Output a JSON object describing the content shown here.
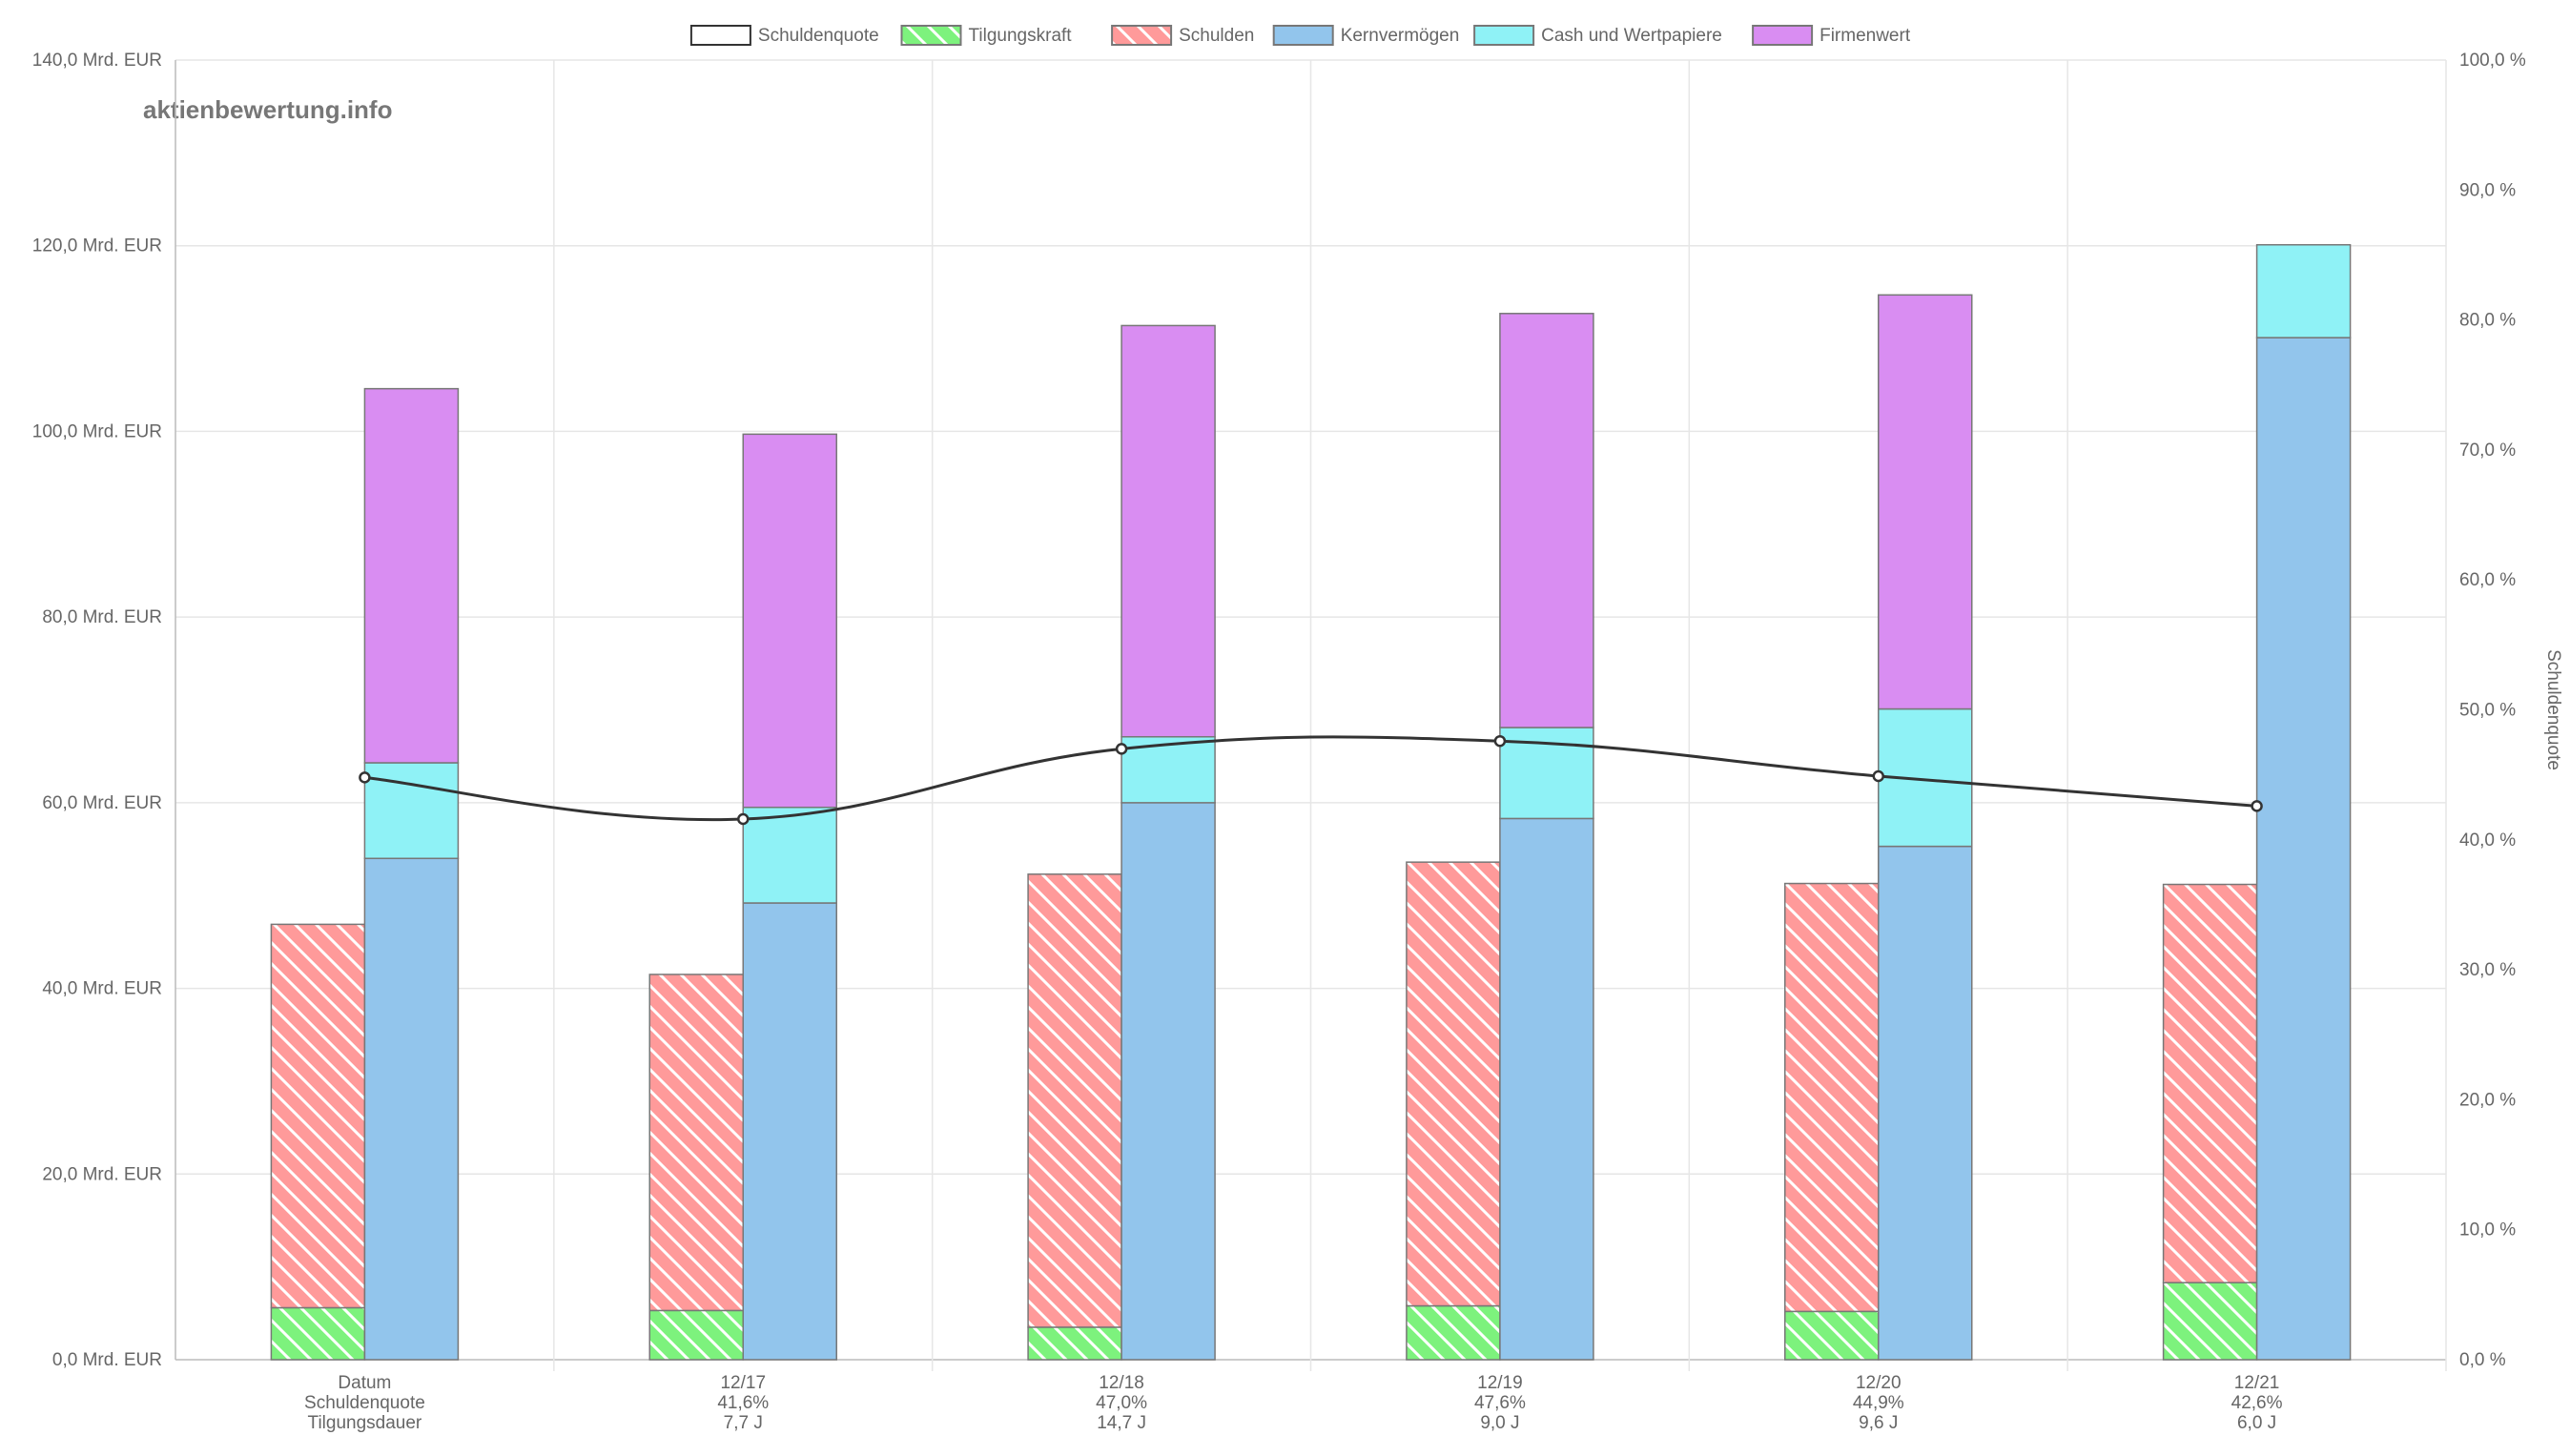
{
  "watermark": "aktienbewertung.info",
  "chart_data": {
    "type": "bar",
    "title": "",
    "categories": [
      [
        "Datum",
        "Schuldenquote",
        "Tilgungsdauer"
      ],
      [
        "12/17",
        "41,6%",
        "7,7 J"
      ],
      [
        "12/18",
        "47,0%",
        "14,7 J"
      ],
      [
        "12/19",
        "47,6%",
        "9,0 J"
      ],
      [
        "12/20",
        "44,9%",
        "9,6 J"
      ],
      [
        "12/21",
        "42,6%",
        "6,0 J"
      ]
    ],
    "y_left": {
      "min": 0,
      "max": 140,
      "step": 20,
      "unit": "Mrd. EUR",
      "tick_labels": [
        "0,0 Mrd. EUR",
        "20,0 Mrd. EUR",
        "40,0 Mrd. EUR",
        "60,0 Mrd. EUR",
        "80,0 Mrd. EUR",
        "100,0 Mrd. EUR",
        "120,0 Mrd. EUR",
        "140,0 Mrd. EUR"
      ]
    },
    "y_right": {
      "min": 0,
      "max": 100,
      "step": 10,
      "label": "Schuldenquote",
      "tick_labels": [
        "0,0 %",
        "10,0 %",
        "20,0 %",
        "30,0 %",
        "40,0 %",
        "50,0 %",
        "60,0 %",
        "70,0 %",
        "80,0 %",
        "90,0 %",
        "100,0 %"
      ]
    },
    "grid": true,
    "legend_position": "top",
    "series": [
      {
        "name": "Schuldenquote",
        "type": "line",
        "axis": "right",
        "color": "#333333",
        "values": [
          44.8,
          41.6,
          47.0,
          47.6,
          44.9,
          42.6
        ]
      },
      {
        "name": "Tilgungskraft",
        "stack": "debt",
        "pattern": "hatch",
        "color": "#7df27d",
        "values": [
          5.6,
          5.3,
          3.5,
          5.8,
          5.2,
          8.3
        ]
      },
      {
        "name": "Schulden",
        "stack": "debt",
        "pattern": "hatch",
        "color": "#ff9a9a",
        "values": [
          41.3,
          36.2,
          48.8,
          47.8,
          46.1,
          42.9
        ]
      },
      {
        "name": "Kernvermögen",
        "stack": "assets",
        "color": "#92c5ec",
        "values": [
          54.0,
          49.2,
          60.0,
          58.3,
          55.3,
          110.1
        ]
      },
      {
        "name": "Cash und Wertpapiere",
        "stack": "assets",
        "color": "#8ff2f6",
        "values": [
          10.3,
          10.3,
          7.1,
          9.8,
          14.8,
          10.0
        ]
      },
      {
        "name": "Firmenwert",
        "stack": "assets",
        "color": "#d98df2",
        "values": [
          40.3,
          40.2,
          44.3,
          44.6,
          44.6,
          0.0
        ]
      }
    ]
  }
}
